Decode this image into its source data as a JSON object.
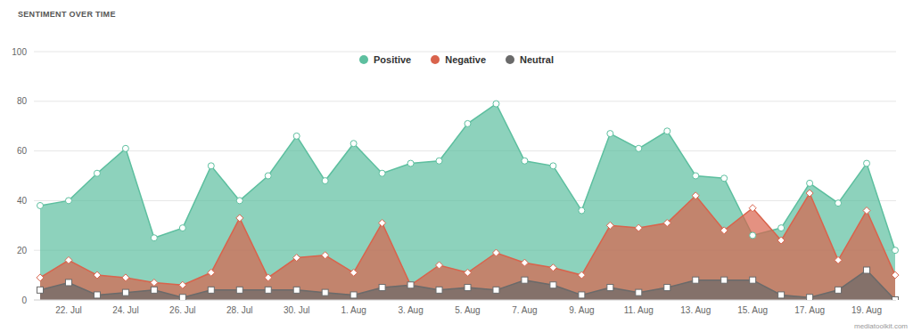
{
  "chart_data": {
    "type": "area",
    "title": "SENTIMENT OVER TIME",
    "annotation": "mediatoolkit.com",
    "categories": [
      null,
      "22. Jul",
      null,
      "24. Jul",
      null,
      "26. Jul",
      null,
      "28. Jul",
      null,
      "30. Jul",
      null,
      "1. Aug",
      null,
      "3. Aug",
      null,
      "5. Aug",
      null,
      "7. Aug",
      null,
      "9. Aug",
      null,
      "11. Aug",
      null,
      "13. Aug",
      null,
      "15. Aug",
      null,
      "17. Aug",
      null,
      "19. Aug",
      null
    ],
    "series": [
      {
        "name": "Positive",
        "color": "#5dbf9f",
        "marker": "circle",
        "values": [
          38,
          40,
          51,
          61,
          25,
          29,
          54,
          40,
          50,
          66,
          48,
          63,
          51,
          55,
          56,
          71,
          79,
          56,
          54,
          36,
          67,
          61,
          68,
          50,
          49,
          26,
          29,
          47,
          39,
          55,
          20
        ]
      },
      {
        "name": "Negative",
        "color": "#d9634c",
        "marker": "diamond",
        "values": [
          9,
          16,
          10,
          9,
          7,
          6,
          11,
          33,
          9,
          17,
          18,
          11,
          31,
          6,
          14,
          11,
          19,
          15,
          13,
          10,
          30,
          29,
          31,
          42,
          28,
          37,
          24,
          43,
          16,
          36,
          10
        ]
      },
      {
        "name": "Neutral",
        "color": "#6a6a6a",
        "marker": "square",
        "values": [
          4,
          7,
          2,
          3,
          4,
          1,
          4,
          4,
          4,
          4,
          3,
          2,
          5,
          6,
          4,
          5,
          4,
          8,
          6,
          2,
          5,
          3,
          5,
          8,
          8,
          8,
          2,
          1,
          4,
          12,
          0
        ]
      }
    ],
    "ylim": [
      0,
      100
    ],
    "yticks": [
      0,
      20,
      40,
      60,
      80,
      100
    ],
    "grid": true,
    "legend": "top"
  }
}
